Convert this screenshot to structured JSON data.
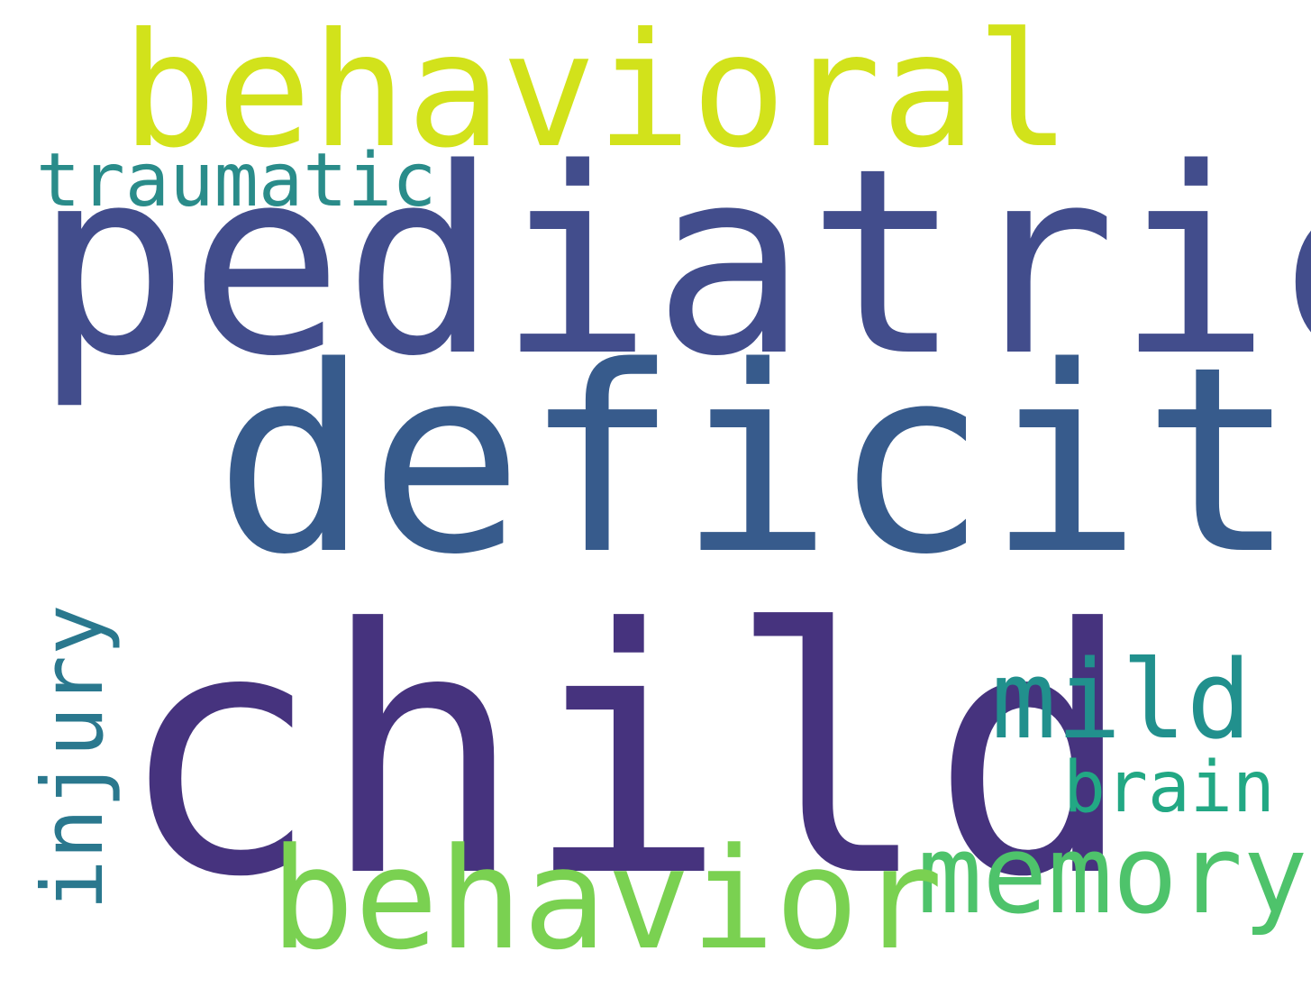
{
  "words": [
    {
      "text": "child",
      "color": "#46337e"
    },
    {
      "text": "pediatric",
      "color": "#424d8c"
    },
    {
      "text": "deficit",
      "color": "#375b8c"
    },
    {
      "text": "behavioral",
      "color": "#d2e21b"
    },
    {
      "text": "behavior",
      "color": "#7ad151"
    },
    {
      "text": "memory",
      "color": "#4ec36b"
    },
    {
      "text": "mild",
      "color": "#21908d"
    },
    {
      "text": "traumatic",
      "color": "#2a8c8a"
    },
    {
      "text": "brain",
      "color": "#22a884"
    },
    {
      "text": "injury",
      "color": "#2a788e"
    }
  ]
}
